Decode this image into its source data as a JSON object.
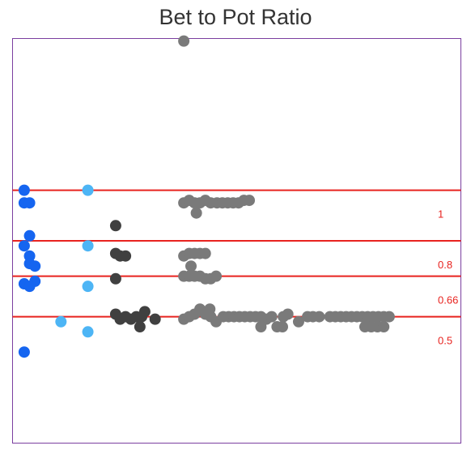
{
  "chart_data": {
    "type": "scatter",
    "title": "Bet to Pot Ratio",
    "xlabel": "",
    "ylabel": "",
    "grid": false,
    "legend": "none",
    "xlim": [
      0,
      100
    ],
    "ylim": [
      0,
      1.6
    ],
    "colors": {
      "frame": "#7b3fa0",
      "reference_line": "#e8231f",
      "reference_label": "#e8231f"
    },
    "reference_lines": [
      {
        "value": 1.0,
        "label": "1"
      },
      {
        "value": 0.8,
        "label": "0.8"
      },
      {
        "value": 0.66,
        "label": "0.66"
      },
      {
        "value": 0.5,
        "label": "0.5"
      }
    ],
    "series": [
      {
        "color": "#1565f0",
        "points": [
          [
            2.6,
            1.0
          ],
          [
            2.6,
            0.95
          ],
          [
            3.8,
            0.95
          ],
          [
            3.8,
            0.82
          ],
          [
            2.6,
            0.78
          ],
          [
            3.8,
            0.74
          ],
          [
            3.8,
            0.71
          ],
          [
            5.0,
            0.7
          ],
          [
            5.0,
            0.64
          ],
          [
            2.6,
            0.63
          ],
          [
            3.8,
            0.62
          ],
          [
            2.6,
            0.36
          ]
        ]
      },
      {
        "color": "#4db5f5",
        "points": [
          [
            16.8,
            1.0
          ],
          [
            16.8,
            0.78
          ],
          [
            10.8,
            0.48
          ],
          [
            16.8,
            0.62
          ],
          [
            16.8,
            0.44
          ]
        ]
      },
      {
        "color": "#404040",
        "points": [
          [
            23.0,
            0.86
          ],
          [
            23.0,
            0.75
          ],
          [
            24.0,
            0.74
          ],
          [
            25.2,
            0.74
          ],
          [
            23.0,
            0.65
          ],
          [
            23.0,
            0.51
          ],
          [
            24.0,
            0.49
          ],
          [
            25.2,
            0.5
          ],
          [
            26.4,
            0.49
          ],
          [
            27.6,
            0.5
          ],
          [
            28.8,
            0.5
          ],
          [
            29.5,
            0.52
          ],
          [
            31.8,
            0.49
          ],
          [
            28.4,
            0.46
          ]
        ]
      },
      {
        "color": "#7a7a7a",
        "points": [
          [
            38.2,
            1.59
          ],
          [
            38.2,
            0.95
          ],
          [
            39.4,
            0.96
          ],
          [
            40.6,
            0.95
          ],
          [
            41.8,
            0.95
          ],
          [
            43.0,
            0.96
          ],
          [
            44.2,
            0.95
          ],
          [
            45.6,
            0.95
          ],
          [
            46.8,
            0.95
          ],
          [
            48.0,
            0.95
          ],
          [
            49.2,
            0.95
          ],
          [
            50.4,
            0.95
          ],
          [
            51.6,
            0.96
          ],
          [
            52.8,
            0.96
          ],
          [
            41.0,
            0.91
          ],
          [
            38.2,
            0.74
          ],
          [
            39.4,
            0.75
          ],
          [
            40.6,
            0.75
          ],
          [
            41.8,
            0.75
          ],
          [
            43.0,
            0.75
          ],
          [
            39.8,
            0.7
          ],
          [
            38.2,
            0.66
          ],
          [
            39.4,
            0.66
          ],
          [
            40.6,
            0.66
          ],
          [
            41.8,
            0.66
          ],
          [
            43.0,
            0.65
          ],
          [
            44.2,
            0.65
          ],
          [
            45.4,
            0.66
          ],
          [
            38.2,
            0.49
          ],
          [
            39.4,
            0.5
          ],
          [
            40.6,
            0.51
          ],
          [
            41.8,
            0.53
          ],
          [
            43.0,
            0.51
          ],
          [
            44.2,
            0.5
          ],
          [
            45.4,
            0.48
          ],
          [
            44.0,
            0.53
          ],
          [
            47.0,
            0.5
          ],
          [
            48.2,
            0.5
          ],
          [
            49.4,
            0.5
          ],
          [
            50.6,
            0.5
          ],
          [
            51.8,
            0.5
          ],
          [
            53.0,
            0.5
          ],
          [
            54.2,
            0.5
          ],
          [
            55.4,
            0.5
          ],
          [
            56.6,
            0.49
          ],
          [
            55.4,
            0.46
          ],
          [
            57.8,
            0.5
          ],
          [
            59.0,
            0.46
          ],
          [
            60.2,
            0.46
          ],
          [
            60.4,
            0.5
          ],
          [
            61.4,
            0.51
          ],
          [
            63.8,
            0.48
          ],
          [
            65.8,
            0.5
          ],
          [
            67.0,
            0.5
          ],
          [
            68.4,
            0.5
          ],
          [
            70.8,
            0.5
          ],
          [
            72.0,
            0.5
          ],
          [
            73.2,
            0.5
          ],
          [
            74.4,
            0.5
          ],
          [
            75.6,
            0.5
          ],
          [
            76.8,
            0.5
          ],
          [
            78.0,
            0.5
          ],
          [
            79.2,
            0.5
          ],
          [
            80.4,
            0.5
          ],
          [
            81.6,
            0.5
          ],
          [
            82.8,
            0.5
          ],
          [
            84.0,
            0.5
          ],
          [
            78.6,
            0.46
          ],
          [
            80.0,
            0.46
          ],
          [
            81.4,
            0.46
          ],
          [
            82.8,
            0.46
          ]
        ]
      }
    ]
  }
}
